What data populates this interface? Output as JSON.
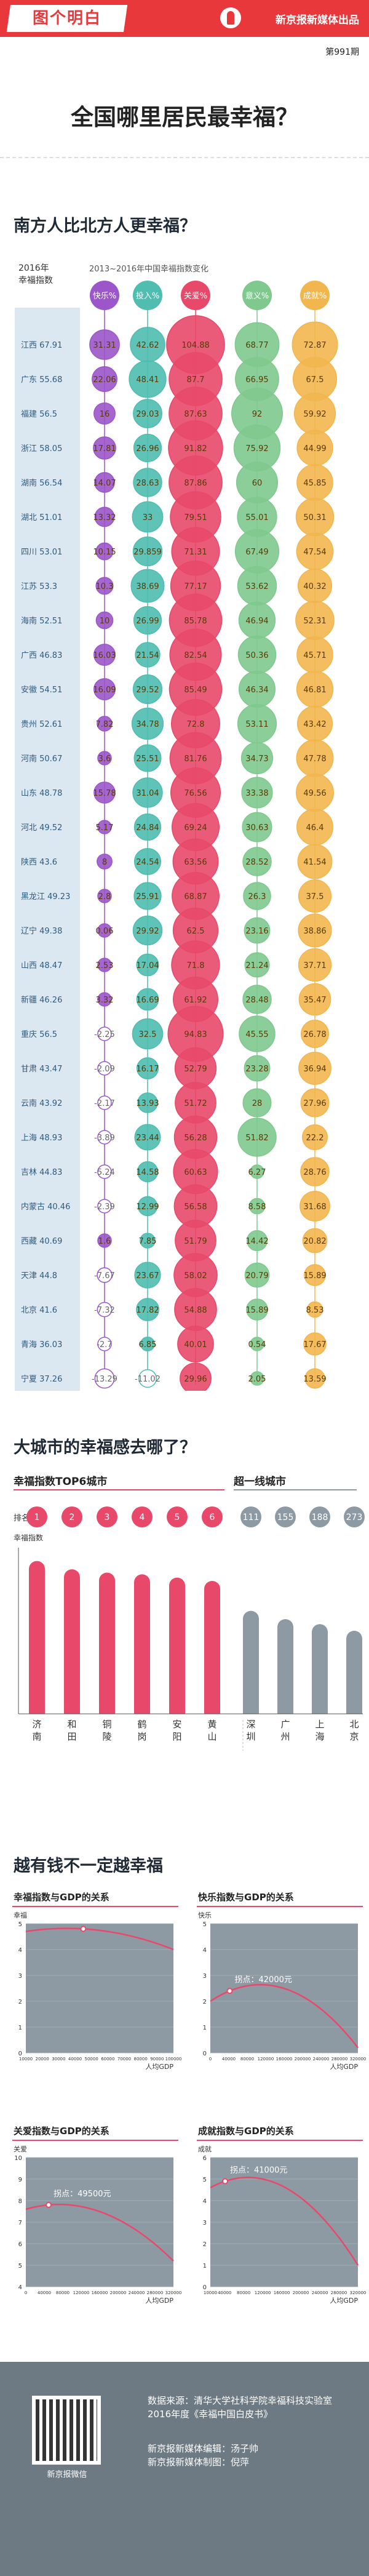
{
  "header": {
    "brand": "图个明白",
    "publisher": "新京报新媒体出品",
    "issue": "第991期"
  },
  "title": "全国哪里居民最幸福？",
  "section1": {
    "title": "南方人比北方人更幸福？",
    "left_header": "2016年\n幸福指数",
    "right_header": "2013~2016年中国幸福指数变化",
    "columns": [
      "快乐%",
      "投入%",
      "关爱%",
      "意义%",
      "成就%"
    ],
    "colors": [
      "#9b56c9",
      "#4fbdb0",
      "#e8496a",
      "#7fc98e",
      "#f2b64f"
    ]
  },
  "section2": {
    "title": "大城市的幸福感去哪了？",
    "sub_left": "幸福指数TOP6城市",
    "sub_right": "超一线城市",
    "rank_label": "排名",
    "y_label": "幸福指数",
    "ranks": [
      "1",
      "2",
      "3",
      "4",
      "5",
      "6",
      "111",
      "155",
      "188",
      "273"
    ],
    "cities": [
      "济南",
      "和田",
      "铜陵",
      "鹤岗",
      "安阳",
      "黄山",
      "深圳",
      "广州",
      "上海",
      "北京"
    ],
    "colors": {
      "top": "#e8496a",
      "tier1": "#8d9aa3"
    }
  },
  "section3": {
    "title": "越有钱不一定越幸福",
    "charts": [
      {
        "title": "幸福指数与GDP的关系",
        "ylabel": "幸福",
        "xlabel": "人均GDP",
        "note": "拐点：45000元"
      },
      {
        "title": "快乐指数与GDP的关系",
        "ylabel": "快乐",
        "xlabel": "人均GDP",
        "note": "拐点：42000元"
      },
      {
        "title": "关爱指数与GDP的关系",
        "ylabel": "关爱",
        "xlabel": "人均GDP",
        "note": "拐点：49500元"
      },
      {
        "title": "成就指数与GDP的关系",
        "ylabel": "成就",
        "xlabel": "人均GDP",
        "note": "拐点：41000元"
      }
    ]
  },
  "footer": {
    "qr_label": "新京报微信",
    "source": "数据来源：清华大学社科学院幸福科技实验室2016年度《幸福中国白皮书》",
    "editor": "新京报新媒体编辑：汤子帅",
    "designer": "新京报新媒体制图：倪萍"
  },
  "chart_data": [
    {
      "type": "table",
      "title": "2013~2016年中国幸福指数变化",
      "columns": [
        "快乐%",
        "投入%",
        "关爱%",
        "意义%",
        "成就%"
      ],
      "rows": [
        {
          "province": "江西",
          "index": 67.91,
          "values": [
            31.31,
            42.62,
            104.88,
            68.77,
            72.87
          ]
        },
        {
          "province": "广东",
          "index": 55.68,
          "values": [
            22.06,
            48.41,
            87.7,
            66.95,
            67.5
          ]
        },
        {
          "province": "福建",
          "index": 56.5,
          "values": [
            16.0,
            29.03,
            87.63,
            92.0,
            59.92
          ]
        },
        {
          "province": "浙江",
          "index": 58.05,
          "values": [
            17.81,
            26.96,
            91.82,
            75.92,
            44.99
          ]
        },
        {
          "province": "湖南",
          "index": 56.54,
          "values": [
            14.07,
            28.63,
            87.86,
            60.0,
            45.85
          ]
        },
        {
          "province": "湖北",
          "index": 51.01,
          "values": [
            13.32,
            33.0,
            79.51,
            55.01,
            50.31
          ]
        },
        {
          "province": "四川",
          "index": 53.01,
          "values": [
            10.15,
            29.859,
            71.31,
            67.49,
            47.54
          ]
        },
        {
          "province": "江苏",
          "index": 53.3,
          "values": [
            10.3,
            38.69,
            77.17,
            53.62,
            40.32
          ]
        },
        {
          "province": "海南",
          "index": 52.51,
          "values": [
            10.0,
            26.99,
            85.78,
            46.94,
            52.31
          ]
        },
        {
          "province": "广西",
          "index": 46.83,
          "values": [
            16.03,
            21.54,
            82.54,
            50.36,
            45.71
          ]
        },
        {
          "province": "安徽",
          "index": 54.51,
          "values": [
            16.09,
            29.52,
            85.49,
            46.34,
            46.81
          ]
        },
        {
          "province": "贵州",
          "index": 52.61,
          "values": [
            7.82,
            34.78,
            72.8,
            53.11,
            43.42
          ]
        },
        {
          "province": "河南",
          "index": 50.67,
          "values": [
            3.6,
            25.51,
            81.76,
            34.73,
            47.78
          ]
        },
        {
          "province": "山东",
          "index": 48.78,
          "values": [
            15.78,
            31.04,
            76.56,
            33.38,
            49.56
          ]
        },
        {
          "province": "河北",
          "index": 49.52,
          "values": [
            5.17,
            24.84,
            69.24,
            30.63,
            46.4
          ]
        },
        {
          "province": "陕西",
          "index": 43.6,
          "values": [
            8.0,
            24.54,
            63.56,
            28.52,
            41.54
          ]
        },
        {
          "province": "黑龙江",
          "index": 49.23,
          "values": [
            2.8,
            25.91,
            68.87,
            26.3,
            37.5
          ]
        },
        {
          "province": "辽宁",
          "index": 49.38,
          "values": [
            0.06,
            29.92,
            62.5,
            23.16,
            38.86
          ]
        },
        {
          "province": "山西",
          "index": 48.47,
          "values": [
            2.53,
            17.04,
            71.8,
            21.24,
            37.71
          ]
        },
        {
          "province": "新疆",
          "index": 46.26,
          "values": [
            3.32,
            16.69,
            61.92,
            28.48,
            35.47
          ]
        },
        {
          "province": "重庆",
          "index": 56.5,
          "values": [
            -2.25,
            32.5,
            94.83,
            45.55,
            26.78
          ]
        },
        {
          "province": "甘肃",
          "index": 43.47,
          "values": [
            -2.09,
            16.17,
            52.79,
            23.28,
            36.94
          ]
        },
        {
          "province": "云南",
          "index": 43.92,
          "values": [
            -2.17,
            13.93,
            51.72,
            28.0,
            27.96
          ]
        },
        {
          "province": "上海",
          "index": 48.93,
          "values": [
            -3.89,
            23.44,
            56.28,
            51.82,
            22.2
          ]
        },
        {
          "province": "吉林",
          "index": 44.83,
          "values": [
            -5.24,
            14.58,
            60.63,
            6.27,
            28.76
          ]
        },
        {
          "province": "内蒙古",
          "index": 40.46,
          "values": [
            -2.39,
            12.99,
            56.58,
            8.58,
            31.68
          ]
        },
        {
          "province": "西藏",
          "index": 40.69,
          "values": [
            1.6,
            7.85,
            51.79,
            14.42,
            20.82
          ]
        },
        {
          "province": "天津",
          "index": 44.8,
          "values": [
            -7.67,
            23.67,
            58.02,
            20.79,
            15.89
          ]
        },
        {
          "province": "北京",
          "index": 41.6,
          "values": [
            -7.32,
            17.82,
            54.88,
            15.89,
            8.53
          ]
        },
        {
          "province": "青海",
          "index": 36.03,
          "values": [
            -2.7,
            6.85,
            40.01,
            0.54,
            17.67
          ]
        },
        {
          "province": "宁夏",
          "index": 37.26,
          "values": [
            -13.29,
            -11.02,
            29.96,
            2.05,
            13.59
          ]
        }
      ]
    },
    {
      "type": "bar",
      "title": "幸福指数TOP6城市 / 超一线城市",
      "ylabel": "幸福指数",
      "categories": [
        "济南",
        "和田",
        "铜陵",
        "鹤岗",
        "安阳",
        "黄山",
        "深圳",
        "广州",
        "上海",
        "北京"
      ],
      "ranks": [
        1,
        2,
        3,
        4,
        5,
        6,
        111,
        155,
        188,
        273
      ],
      "values": [
        92,
        87,
        85,
        84,
        82,
        80,
        62,
        57,
        54,
        50
      ]
    },
    {
      "type": "line",
      "title": "幸福指数与GDP的关系",
      "xlabel": "人均GDP",
      "ylabel": "幸福",
      "x": [
        10000,
        45000,
        100000
      ],
      "y": [
        4.7,
        4.8,
        4.0
      ],
      "xlim": [
        10000,
        100000
      ],
      "ylim": [
        0,
        5
      ],
      "xticks": [
        10000,
        20000,
        30000,
        40000,
        50000,
        60000,
        70000,
        80000,
        90000,
        100000
      ],
      "yticks": [
        0,
        1,
        2,
        3,
        4,
        5
      ],
      "turning_point": 45000
    },
    {
      "type": "line",
      "title": "快乐指数与GDP的关系",
      "xlabel": "人均GDP",
      "ylabel": "快乐",
      "x": [
        0,
        42000,
        320000
      ],
      "y": [
        2.0,
        2.4,
        0.2
      ],
      "xlim": [
        0,
        320000
      ],
      "ylim": [
        0,
        5
      ],
      "xticks": [
        0,
        40000,
        80000,
        120000,
        160000,
        200000,
        240000,
        280000,
        320000
      ],
      "yticks": [
        0,
        1,
        2,
        3,
        4,
        5
      ],
      "turning_point": 42000
    },
    {
      "type": "line",
      "title": "关爱指数与GDP的关系",
      "xlabel": "人均GDP",
      "ylabel": "关爱",
      "x": [
        0,
        49500,
        320000
      ],
      "y": [
        7.6,
        7.8,
        5.2
      ],
      "xlim": [
        0,
        320000
      ],
      "ylim": [
        4,
        10
      ],
      "xticks": [
        0,
        40000,
        80000,
        120000,
        160000,
        200000,
        240000,
        280000,
        320000
      ],
      "yticks": [
        4,
        5,
        6,
        7,
        8,
        9,
        10
      ],
      "turning_point": 49500
    },
    {
      "type": "line",
      "title": "成就指数与GDP的关系",
      "xlabel": "人均GDP",
      "ylabel": "成就",
      "x": [
        10000,
        41000,
        320000
      ],
      "y": [
        4.6,
        4.9,
        1.0
      ],
      "xlim": [
        10000,
        320000
      ],
      "ylim": [
        0,
        6
      ],
      "xticks": [
        10000,
        40000,
        80000,
        120000,
        160000,
        200000,
        240000,
        280000,
        320000
      ],
      "yticks": [
        0,
        1,
        2,
        3,
        4,
        5,
        6
      ],
      "turning_point": 41000
    }
  ]
}
